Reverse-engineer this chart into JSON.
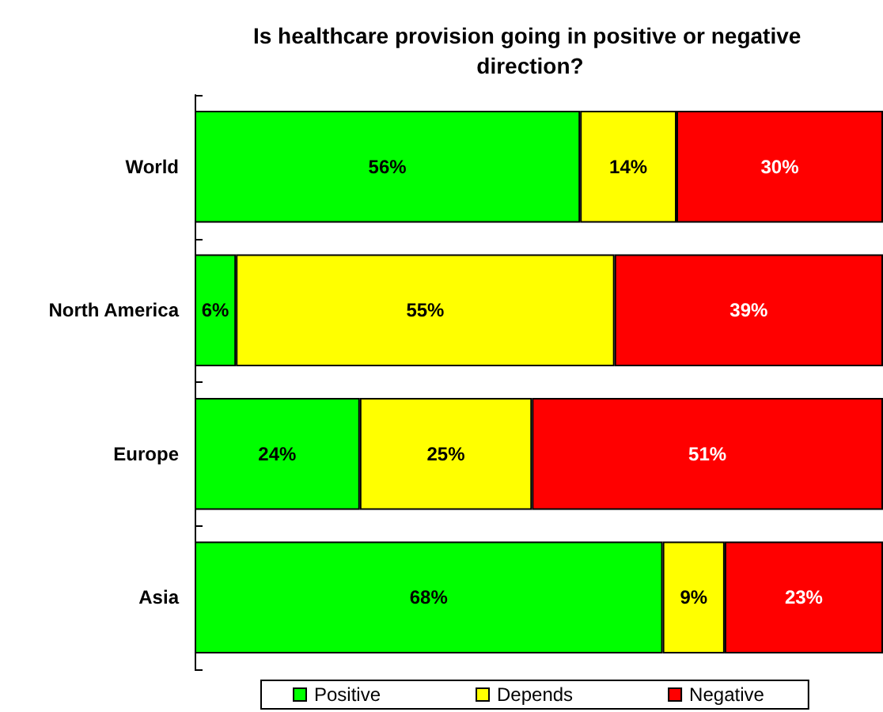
{
  "chart_data": {
    "type": "bar",
    "orientation": "horizontal",
    "stacked": true,
    "title": "Is healthcare provision going in positive or negative direction?",
    "categories": [
      "World",
      "North America",
      "Europe",
      "Asia"
    ],
    "series": [
      {
        "name": "Positive",
        "color": "#00ff00",
        "values": [
          56,
          6,
          24,
          68
        ],
        "value_labels": [
          "56%",
          "6%",
          "24%",
          "68%"
        ]
      },
      {
        "name": "Depends",
        "color": "#ffff00",
        "values": [
          14,
          55,
          25,
          9
        ],
        "value_labels": [
          "14%",
          "55%",
          "25%",
          "9%"
        ]
      },
      {
        "name": "Negative",
        "color": "#ff0000",
        "values": [
          30,
          39,
          51,
          23
        ],
        "value_labels": [
          "30%",
          "39%",
          "51%",
          "23%"
        ]
      }
    ],
    "legend": "bottom"
  }
}
